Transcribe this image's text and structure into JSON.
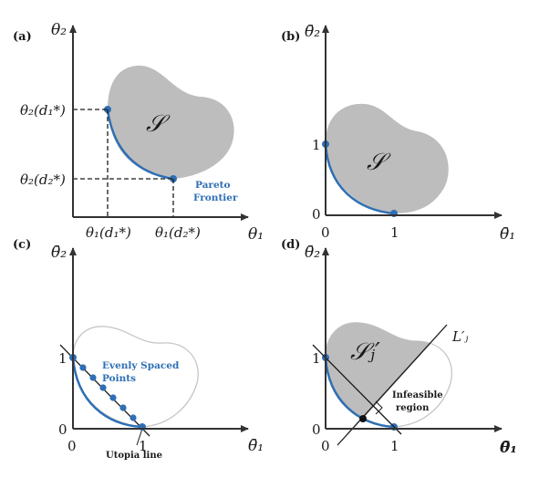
{
  "colors": {
    "region_fill": "#bdbdbd",
    "frontier": "#2e6fb5",
    "axis": "#333333",
    "outline": "#c6c6c6"
  },
  "panel_a": {
    "tag": "(a)",
    "y_axis": "θ₂",
    "x_axis": "θ₁",
    "region_label": "𝒮",
    "y_tick_1": "θ₂(d₁*)",
    "y_tick_2": "θ₂(d₂*)",
    "x_tick_1": "θ₁(d₁*)",
    "x_tick_2": "θ₁(d₂*)",
    "frontier_label_1": "Pareto",
    "frontier_label_2": "Frontier"
  },
  "panel_b": {
    "tag": "(b)",
    "y_axis": "θ̄₂",
    "x_axis": "θ̄₁",
    "region_label": "𝒮",
    "tick_1": "1",
    "tick_0": "0",
    "xtick_0": "0",
    "xtick_1": "1"
  },
  "panel_c": {
    "tag": "(c)",
    "y_axis": "θ̄₂",
    "x_axis": "θ̄₁",
    "tick_1": "1",
    "tick_0": "0",
    "xtick_0": "0",
    "xtick_1": "1",
    "points_label_1": "Evenly Spaced",
    "points_label_2": "Points",
    "utopia_label": "Utopia line"
  },
  "panel_d": {
    "tag": "(d)",
    "y_axis": "θ̄₂",
    "x_axis": "θ̄₁",
    "region_label": "𝒮ⱼ′",
    "line_label": "L′ⱼ",
    "tick_1": "1",
    "tick_0": "0",
    "xtick_0": "0",
    "xtick_1": "1",
    "infeasible_1": "Infeasible",
    "infeasible_2": "region"
  }
}
